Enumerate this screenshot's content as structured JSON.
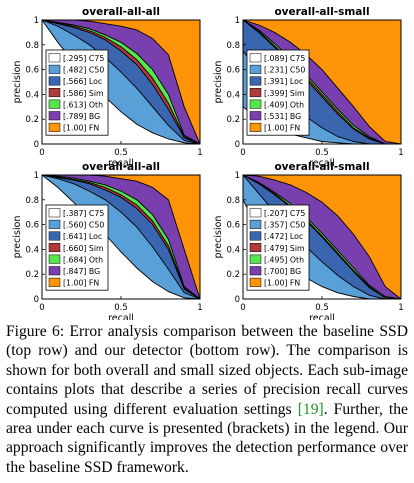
{
  "figure": {
    "colors": {
      "C75": "#ffffff",
      "C50": "#5aa0d8",
      "Loc": "#3a66b0",
      "Sim": "#b03a3a",
      "Oth": "#55e64e",
      "BG": "#7a3fae",
      "FN": "#ff9408"
    },
    "series_order": [
      "C75",
      "C50",
      "Loc",
      "Sim",
      "Oth",
      "BG",
      "FN"
    ],
    "panels": [
      {
        "title": "overall-all-all",
        "xlabel": "recall",
        "ylabel": "precision",
        "x_ticks": [
          "0",
          "0.5",
          "1"
        ],
        "y_ticks": [
          "0",
          "0.2",
          "0.4",
          "0.6",
          "0.8",
          "1"
        ],
        "legend": [
          {
            "key": "C75",
            "text": "[.295] C75"
          },
          {
            "key": "C50",
            "text": "[.482] C50"
          },
          {
            "key": "Loc",
            "text": "[.566] Loc"
          },
          {
            "key": "Sim",
            "text": "[.586] Sim"
          },
          {
            "key": "Oth",
            "text": "[.613] Oth"
          },
          {
            "key": "BG",
            "text": "[.789] BG"
          },
          {
            "key": "FN",
            "text": "[1.00] FN"
          }
        ]
      },
      {
        "title": "overall-all-small",
        "xlabel": "recall",
        "ylabel": "precision",
        "x_ticks": [
          "0",
          "0.5",
          "1"
        ],
        "y_ticks": [
          "0",
          "0.2",
          "0.4",
          "0.6",
          "0.8",
          "1"
        ],
        "legend": [
          {
            "key": "C75",
            "text": "[.089] C75"
          },
          {
            "key": "C50",
            "text": "[.231] C50"
          },
          {
            "key": "Loc",
            "text": "[.391] Loc"
          },
          {
            "key": "Sim",
            "text": "[.399] Sim"
          },
          {
            "key": "Oth",
            "text": "[.409] Oth"
          },
          {
            "key": "BG",
            "text": "[.531] BG"
          },
          {
            "key": "FN",
            "text": "[1.00] FN"
          }
        ]
      },
      {
        "title": "overall-all-all",
        "xlabel": "recall",
        "ylabel": "precision",
        "x_ticks": [
          "0",
          "0.5",
          "1"
        ],
        "y_ticks": [
          "0",
          "0.2",
          "0.4",
          "0.6",
          "0.8",
          "1"
        ],
        "legend": [
          {
            "key": "C75",
            "text": "[.387] C75"
          },
          {
            "key": "C50",
            "text": "[.560] C50"
          },
          {
            "key": "Loc",
            "text": "[.641] Loc"
          },
          {
            "key": "Sim",
            "text": "[.660] Sim"
          },
          {
            "key": "Oth",
            "text": "[.684] Oth"
          },
          {
            "key": "BG",
            "text": "[.847] BG"
          },
          {
            "key": "FN",
            "text": "[1.00] FN"
          }
        ]
      },
      {
        "title": "overall-all-small",
        "xlabel": "recall",
        "ylabel": "precision",
        "x_ticks": [
          "0",
          "0.5",
          "1"
        ],
        "y_ticks": [
          "0",
          "0.2",
          "0.4",
          "0.6",
          "0.8",
          "1"
        ],
        "legend": [
          {
            "key": "C75",
            "text": "[.207] C75"
          },
          {
            "key": "C50",
            "text": "[.357] C50"
          },
          {
            "key": "Loc",
            "text": "[.472] Loc"
          },
          {
            "key": "Sim",
            "text": "[.479] Sim"
          },
          {
            "key": "Oth",
            "text": "[.495] Oth"
          },
          {
            "key": "BG",
            "text": "[.700] BG"
          },
          {
            "key": "FN",
            "text": "[1.00] FN"
          }
        ]
      }
    ]
  },
  "chart_data": [
    {
      "type": "area",
      "title": "overall-all-all",
      "xlabel": "recall",
      "ylabel": "precision",
      "xlim": [
        0,
        1
      ],
      "ylim": [
        0,
        1
      ],
      "grid": false,
      "legend": "left",
      "x": [
        0,
        0.1,
        0.2,
        0.3,
        0.4,
        0.5,
        0.6,
        0.7,
        0.8,
        0.9,
        1.0
      ],
      "series": [
        {
          "name": "[.295] C75",
          "values": [
            1.0,
            0.82,
            0.66,
            0.52,
            0.38,
            0.26,
            0.16,
            0.09,
            0.04,
            0.01,
            0
          ]
        },
        {
          "name": "[.482] C50",
          "values": [
            1.0,
            0.95,
            0.88,
            0.8,
            0.7,
            0.58,
            0.45,
            0.3,
            0.15,
            0.03,
            0
          ]
        },
        {
          "name": "[.566] Loc",
          "values": [
            1.0,
            0.97,
            0.94,
            0.9,
            0.84,
            0.75,
            0.64,
            0.48,
            0.28,
            0.05,
            0
          ]
        },
        {
          "name": "[.586] Sim",
          "values": [
            1.0,
            0.975,
            0.95,
            0.915,
            0.86,
            0.785,
            0.68,
            0.53,
            0.33,
            0.06,
            0
          ]
        },
        {
          "name": "[.613] Oth",
          "values": [
            1.0,
            0.98,
            0.96,
            0.93,
            0.88,
            0.82,
            0.73,
            0.6,
            0.4,
            0.07,
            0
          ]
        },
        {
          "name": "[.789] BG",
          "values": [
            1.0,
            1.0,
            1.0,
            0.99,
            0.97,
            0.95,
            0.92,
            0.85,
            0.72,
            0.3,
            0
          ]
        },
        {
          "name": "[1.00] FN",
          "values": [
            1,
            1,
            1,
            1,
            1,
            1,
            1,
            1,
            1,
            1,
            1
          ]
        }
      ]
    },
    {
      "type": "area",
      "title": "overall-all-small",
      "xlabel": "recall",
      "ylabel": "precision",
      "xlim": [
        0,
        1
      ],
      "ylim": [
        0,
        1
      ],
      "grid": false,
      "legend": "left",
      "x": [
        0,
        0.1,
        0.2,
        0.3,
        0.4,
        0.5,
        0.6,
        0.7,
        0.8,
        0.9,
        1.0
      ],
      "series": [
        {
          "name": "[.089] C75",
          "values": [
            0.3,
            0.2,
            0.13,
            0.08,
            0.05,
            0.02,
            0.01,
            0,
            0,
            0,
            0
          ]
        },
        {
          "name": "[.231] C50",
          "values": [
            0.75,
            0.58,
            0.44,
            0.32,
            0.22,
            0.13,
            0.06,
            0.02,
            0,
            0,
            0
          ]
        },
        {
          "name": "[.391] Loc",
          "values": [
            1.0,
            0.9,
            0.78,
            0.65,
            0.52,
            0.38,
            0.24,
            0.12,
            0.04,
            0,
            0
          ]
        },
        {
          "name": "[.399] Sim",
          "values": [
            1.0,
            0.91,
            0.79,
            0.67,
            0.54,
            0.4,
            0.26,
            0.13,
            0.05,
            0,
            0
          ]
        },
        {
          "name": "[.409] Oth",
          "values": [
            1.0,
            0.92,
            0.81,
            0.69,
            0.56,
            0.42,
            0.28,
            0.15,
            0.06,
            0,
            0
          ]
        },
        {
          "name": "[.531] BG",
          "values": [
            1.0,
            0.96,
            0.9,
            0.82,
            0.72,
            0.6,
            0.45,
            0.3,
            0.14,
            0.02,
            0
          ]
        },
        {
          "name": "[1.00] FN",
          "values": [
            1,
            1,
            1,
            1,
            1,
            1,
            1,
            1,
            1,
            1,
            1
          ]
        }
      ]
    },
    {
      "type": "area",
      "title": "overall-all-all",
      "xlabel": "recall",
      "ylabel": "precision",
      "xlim": [
        0,
        1
      ],
      "ylim": [
        0,
        1
      ],
      "grid": false,
      "legend": "left",
      "x": [
        0,
        0.1,
        0.2,
        0.3,
        0.4,
        0.5,
        0.6,
        0.7,
        0.8,
        0.9,
        1.0
      ],
      "series": [
        {
          "name": "[.387] C75",
          "values": [
            1.0,
            0.9,
            0.78,
            0.65,
            0.52,
            0.38,
            0.25,
            0.14,
            0.06,
            0.01,
            0
          ]
        },
        {
          "name": "[.560] C50",
          "values": [
            1.0,
            0.97,
            0.93,
            0.87,
            0.8,
            0.7,
            0.58,
            0.42,
            0.24,
            0.05,
            0
          ]
        },
        {
          "name": "[.641] Loc",
          "values": [
            1.0,
            0.98,
            0.96,
            0.93,
            0.88,
            0.82,
            0.73,
            0.6,
            0.4,
            0.08,
            0
          ]
        },
        {
          "name": "[.660] Sim",
          "values": [
            1.0,
            0.985,
            0.965,
            0.94,
            0.9,
            0.84,
            0.76,
            0.63,
            0.43,
            0.09,
            0
          ]
        },
        {
          "name": "[.684] Oth",
          "values": [
            1.0,
            0.99,
            0.975,
            0.95,
            0.92,
            0.87,
            0.8,
            0.68,
            0.48,
            0.1,
            0
          ]
        },
        {
          "name": "[.847] BG",
          "values": [
            1.0,
            1.0,
            1.0,
            1.0,
            0.99,
            0.97,
            0.95,
            0.9,
            0.8,
            0.4,
            0
          ]
        },
        {
          "name": "[1.00] FN",
          "values": [
            1,
            1,
            1,
            1,
            1,
            1,
            1,
            1,
            1,
            1,
            1
          ]
        }
      ]
    },
    {
      "type": "area",
      "title": "overall-all-small",
      "xlabel": "recall",
      "ylabel": "precision",
      "xlim": [
        0,
        1
      ],
      "ylim": [
        0,
        1
      ],
      "grid": false,
      "legend": "left",
      "x": [
        0,
        0.1,
        0.2,
        0.3,
        0.4,
        0.5,
        0.6,
        0.7,
        0.8,
        0.9,
        1.0
      ],
      "series": [
        {
          "name": "[.207] C75",
          "values": [
            0.8,
            0.55,
            0.38,
            0.26,
            0.17,
            0.1,
            0.05,
            0.02,
            0,
            0,
            0
          ]
        },
        {
          "name": "[.357] C50",
          "values": [
            1.0,
            0.85,
            0.7,
            0.55,
            0.42,
            0.3,
            0.19,
            0.1,
            0.03,
            0,
            0
          ]
        },
        {
          "name": "[.472] Loc",
          "values": [
            1.0,
            0.93,
            0.84,
            0.74,
            0.63,
            0.5,
            0.36,
            0.22,
            0.09,
            0.01,
            0
          ]
        },
        {
          "name": "[.479] Sim",
          "values": [
            1.0,
            0.935,
            0.85,
            0.75,
            0.64,
            0.51,
            0.37,
            0.23,
            0.1,
            0.01,
            0
          ]
        },
        {
          "name": "[.495] Oth",
          "values": [
            1.0,
            0.94,
            0.86,
            0.77,
            0.66,
            0.53,
            0.39,
            0.25,
            0.11,
            0.02,
            0
          ]
        },
        {
          "name": "[.700] BG",
          "values": [
            1.0,
            0.99,
            0.96,
            0.92,
            0.86,
            0.78,
            0.67,
            0.52,
            0.34,
            0.1,
            0
          ]
        },
        {
          "name": "[1.00] FN",
          "values": [
            1,
            1,
            1,
            1,
            1,
            1,
            1,
            1,
            1,
            1,
            1
          ]
        }
      ]
    }
  ],
  "caption": {
    "text_before_cite": "Figure 6: Error analysis comparison between the baseline SSD (top row) and our detector (bottom row). The comparison is shown for both overall and small sized objects. Each sub-image contains plots that describe a series of precision recall curves computed using different evaluation settings ",
    "cite": "[19]",
    "text_after_cite": ". Further, the area under each curve is presented (brackets) in the legend. Our approach significantly improves the detection performance over the baseline SSD framework."
  }
}
